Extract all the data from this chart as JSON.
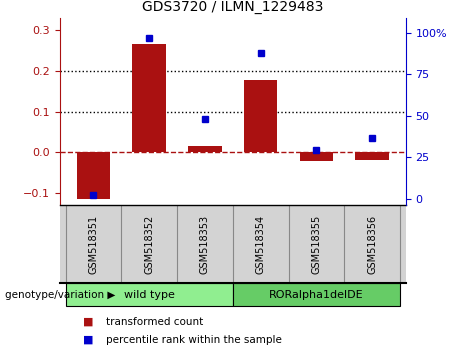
{
  "title": "GDS3720 / ILMN_1229483",
  "samples": [
    "GSM518351",
    "GSM518352",
    "GSM518353",
    "GSM518354",
    "GSM518355",
    "GSM518356"
  ],
  "bar_values": [
    -0.115,
    0.265,
    0.015,
    0.178,
    -0.022,
    -0.018
  ],
  "scatter_percentile": [
    2.5,
    97,
    48,
    87.5,
    29.5,
    36.5
  ],
  "groups": [
    {
      "label": "wild type",
      "samples": [
        0,
        1,
        2
      ],
      "color": "#90EE90"
    },
    {
      "label": "RORalpha1delDE",
      "samples": [
        3,
        4,
        5
      ],
      "color": "#66CC66"
    }
  ],
  "ylim_left": [
    -0.13,
    0.33
  ],
  "ylim_right": [
    -3.9,
    109
  ],
  "yticks_left": [
    -0.1,
    0.0,
    0.1,
    0.2,
    0.3
  ],
  "yticks_right": [
    0,
    25,
    50,
    75,
    100
  ],
  "ytick_labels_right": [
    "0",
    "25",
    "50",
    "75",
    "100%"
  ],
  "bar_color": "#AA1111",
  "scatter_color": "#0000CC",
  "zero_line_color": "#AA1111",
  "dotted_line_color": "black",
  "dotted_line_values": [
    0.1,
    0.2
  ],
  "legend_items": [
    "transformed count",
    "percentile rank within the sample"
  ],
  "genotype_label": "genotype/variation",
  "label_bg": "#D3D3D3",
  "plot_bg": "white"
}
